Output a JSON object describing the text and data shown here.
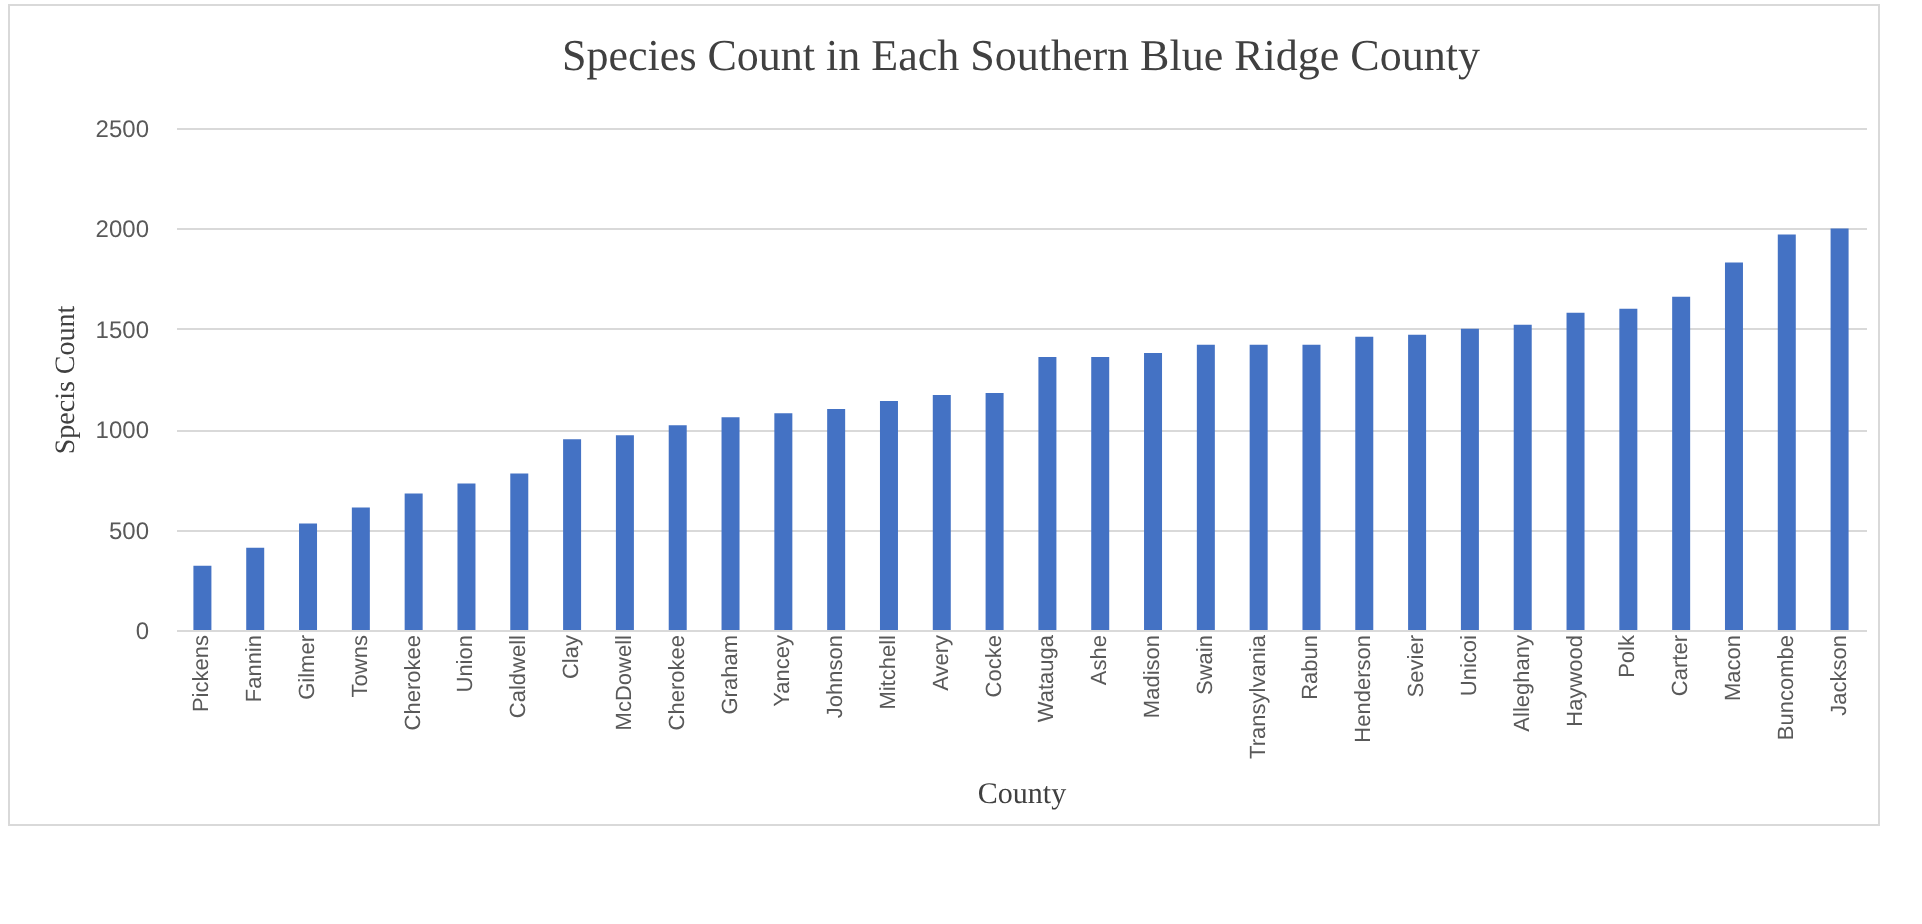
{
  "chart_data": {
    "type": "bar",
    "title": "Species Count in Each Southern Blue Ridge County",
    "xlabel": "County",
    "ylabel": "Specis Count",
    "categories": [
      "Pickens",
      "Fannin",
      "Gilmer",
      "Towns",
      "Cherokee",
      "Union",
      "Caldwell",
      "Clay",
      "McDowell",
      "Cherokee",
      "Graham",
      "Yancey",
      "Johnson",
      "Mitchell",
      "Avery",
      "Cocke",
      "Watauga",
      "Ashe",
      "Madison",
      "Swain",
      "Transylvania",
      "Rabun",
      "Henderson",
      "Sevier",
      "Unicoi",
      "Alleghany",
      "Haywood",
      "Polk",
      "Carter",
      "Macon",
      "Buncombe",
      "Jackson"
    ],
    "values": [
      320,
      410,
      530,
      610,
      680,
      730,
      780,
      950,
      970,
      1020,
      1060,
      1080,
      1100,
      1140,
      1170,
      1180,
      1360,
      1360,
      1380,
      1420,
      1420,
      1420,
      1460,
      1470,
      1500,
      1520,
      1580,
      1600,
      1660,
      1830,
      1970,
      2000
    ],
    "color": "#4472c4",
    "ylim": [
      0,
      2500
    ],
    "yticks": [
      0,
      500,
      1000,
      1500,
      2000,
      2500
    ],
    "grid": "y"
  }
}
